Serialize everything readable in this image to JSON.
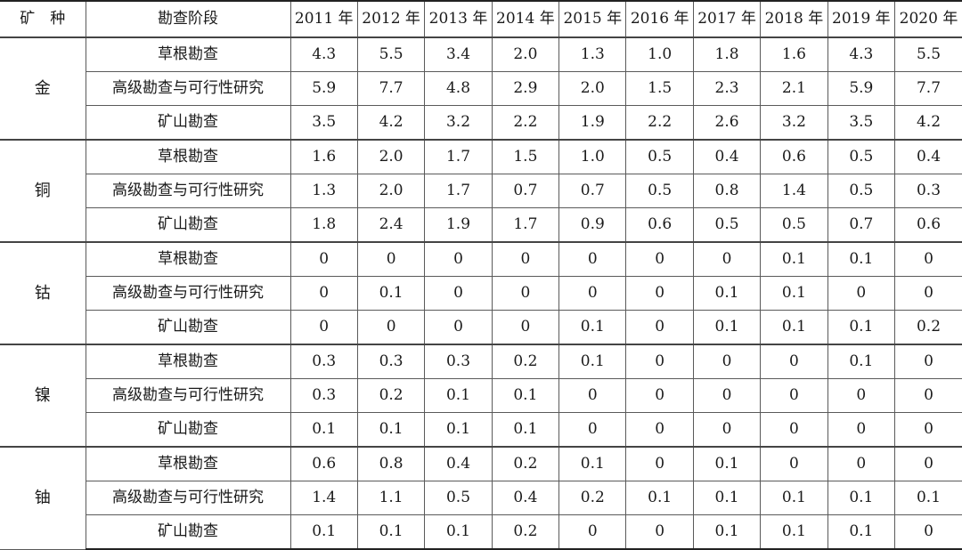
{
  "table": {
    "headers": [
      "矿　种",
      "勘查阶段",
      "2011 年",
      "2012 年",
      "2013 年",
      "2014 年",
      "2015 年",
      "2016 年",
      "2017 年",
      "2018 年",
      "2019 年",
      "2020 年"
    ],
    "groups": [
      {
        "mineral": "金",
        "rows": [
          {
            "stage": "草根勘查",
            "values": [
              "4.3",
              "5.5",
              "3.4",
              "2.0",
              "1.3",
              "1.0",
              "1.8",
              "1.6",
              "4.3",
              "5.5"
            ]
          },
          {
            "stage": "高级勘查与可行性研究",
            "values": [
              "5.9",
              "7.7",
              "4.8",
              "2.9",
              "2.0",
              "1.5",
              "2.3",
              "2.1",
              "5.9",
              "7.7"
            ]
          },
          {
            "stage": "矿山勘查",
            "values": [
              "3.5",
              "4.2",
              "3.2",
              "2.2",
              "1.9",
              "2.2",
              "2.6",
              "3.2",
              "3.5",
              "4.2"
            ]
          }
        ]
      },
      {
        "mineral": "铜",
        "rows": [
          {
            "stage": "草根勘查",
            "values": [
              "1.6",
              "2.0",
              "1.7",
              "1.5",
              "1.0",
              "0.5",
              "0.4",
              "0.6",
              "0.5",
              "0.4"
            ]
          },
          {
            "stage": "高级勘查与可行性研究",
            "values": [
              "1.3",
              "2.0",
              "1.7",
              "0.7",
              "0.7",
              "0.5",
              "0.8",
              "1.4",
              "0.5",
              "0.3"
            ]
          },
          {
            "stage": "矿山勘查",
            "values": [
              "1.8",
              "2.4",
              "1.9",
              "1.7",
              "0.9",
              "0.6",
              "0.5",
              "0.5",
              "0.7",
              "0.6"
            ]
          }
        ]
      },
      {
        "mineral": "钴",
        "rows": [
          {
            "stage": "草根勘查",
            "values": [
              "0",
              "0",
              "0",
              "0",
              "0",
              "0",
              "0",
              "0.1",
              "0.1",
              "0"
            ]
          },
          {
            "stage": "高级勘查与可行性研究",
            "values": [
              "0",
              "0.1",
              "0",
              "0",
              "0",
              "0",
              "0.1",
              "0.1",
              "0",
              "0"
            ]
          },
          {
            "stage": "矿山勘查",
            "values": [
              "0",
              "0",
              "0",
              "0",
              "0.1",
              "0",
              "0.1",
              "0.1",
              "0.1",
              "0.2"
            ]
          }
        ]
      },
      {
        "mineral": "镍",
        "rows": [
          {
            "stage": "草根勘查",
            "values": [
              "0.3",
              "0.3",
              "0.3",
              "0.2",
              "0.1",
              "0",
              "0",
              "0",
              "0.1",
              "0"
            ]
          },
          {
            "stage": "高级勘查与可行性研究",
            "values": [
              "0.3",
              "0.2",
              "0.1",
              "0.1",
              "0",
              "0",
              "0",
              "0",
              "0",
              "0"
            ]
          },
          {
            "stage": "矿山勘查",
            "values": [
              "0.1",
              "0.1",
              "0.1",
              "0.1",
              "0",
              "0",
              "0",
              "0",
              "0",
              "0"
            ]
          }
        ]
      },
      {
        "mineral": "铀",
        "rows": [
          {
            "stage": "草根勘查",
            "values": [
              "0.6",
              "0.8",
              "0.4",
              "0.2",
              "0.1",
              "0",
              "0.1",
              "0",
              "0",
              "0"
            ]
          },
          {
            "stage": "高级勘查与可行性研究",
            "values": [
              "1.4",
              "1.1",
              "0.5",
              "0.4",
              "0.2",
              "0.1",
              "0.1",
              "0.1",
              "0.1",
              "0.1"
            ]
          },
          {
            "stage": "矿山勘查",
            "values": [
              "0.1",
              "0.1",
              "0.1",
              "0.2",
              "0",
              "0",
              "0.1",
              "0.1",
              "0.1",
              "0"
            ]
          }
        ]
      }
    ]
  }
}
